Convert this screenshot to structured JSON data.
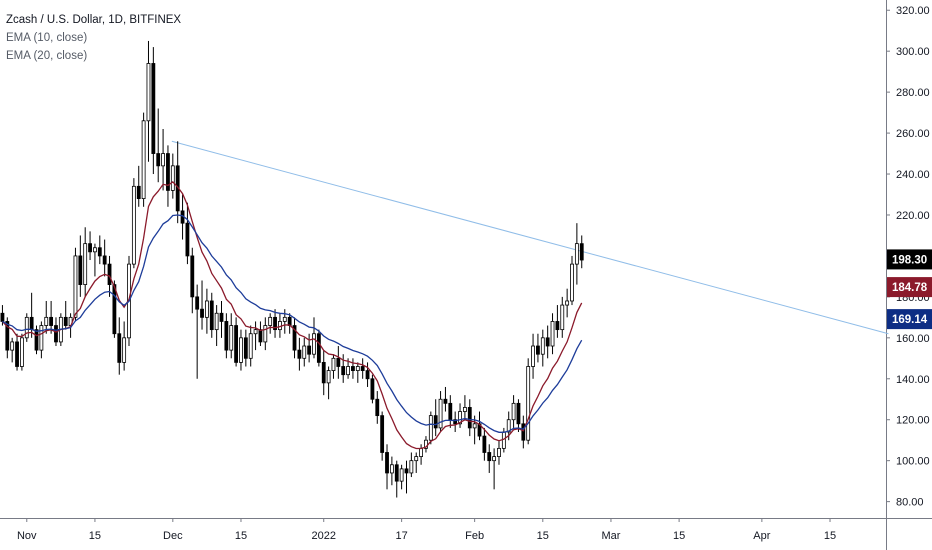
{
  "legend": {
    "title": "Zcash / U.S. Dollar, 1D, BITFINEX",
    "ema10": "EMA (10, close)",
    "ema20": "EMA (20, close)"
  },
  "colors": {
    "up_body": "#ffffff",
    "down_body": "#000000",
    "wick": "#000000",
    "ema10": "#8b1a2b",
    "ema20": "#1e3d9a",
    "trendline": "#90bde8",
    "last_price_bg": "#000000",
    "ema10_badge_bg": "#8b1a2b",
    "ema20_badge_bg": "#0d2d84"
  },
  "chart_data": {
    "type": "candlestick",
    "title": "Zcash / U.S. Dollar, 1D, BITFINEX",
    "ylim": [
      72,
      325
    ],
    "y_ticks": [
      "80.00",
      "100.00",
      "120.00",
      "140.00",
      "160.00",
      "180.00",
      "200.00",
      "220.00",
      "240.00",
      "260.00",
      "280.00",
      "300.00",
      "320.00"
    ],
    "y_tick_values": [
      80,
      100,
      120,
      140,
      160,
      180,
      200,
      220,
      240,
      260,
      280,
      300,
      320
    ],
    "x_ticks": [
      {
        "label": "Nov",
        "index": 5
      },
      {
        "label": "15",
        "index": 19
      },
      {
        "label": "Dec",
        "index": 35
      },
      {
        "label": "15",
        "index": 49
      },
      {
        "label": "2022",
        "index": 66
      },
      {
        "label": "17",
        "index": 82
      },
      {
        "label": "Feb",
        "index": 97
      },
      {
        "label": "15",
        "index": 111
      },
      {
        "label": "Mar",
        "index": 125
      },
      {
        "label": "15",
        "index": 139
      },
      {
        "label": "Apr",
        "index": 156
      },
      {
        "label": "15",
        "index": 170
      }
    ],
    "total_slots": 182,
    "last_price": "198.30",
    "ema10_last": "184.78",
    "ema20_last": "169.14",
    "ema10_last_value": 184.78,
    "ema20_last_value": 169.14,
    "last_price_value": 198.3,
    "trendline": {
      "x1": 34.8,
      "y1": 256,
      "x2": 182,
      "y2": 162
    },
    "ohlc": [
      [
        172,
        176,
        166,
        168
      ],
      [
        168,
        170,
        150,
        154
      ],
      [
        154,
        160,
        148,
        158
      ],
      [
        158,
        162,
        144,
        146
      ],
      [
        146,
        162,
        144,
        160
      ],
      [
        160,
        172,
        158,
        170
      ],
      [
        170,
        182,
        160,
        164
      ],
      [
        164,
        166,
        152,
        154
      ],
      [
        154,
        168,
        150,
        166
      ],
      [
        166,
        178,
        162,
        170
      ],
      [
        170,
        178,
        162,
        166
      ],
      [
        166,
        170,
        156,
        158
      ],
      [
        158,
        172,
        156,
        170
      ],
      [
        170,
        178,
        164,
        166
      ],
      [
        166,
        172,
        160,
        170
      ],
      [
        170,
        204,
        168,
        200
      ],
      [
        200,
        210,
        180,
        186
      ],
      [
        186,
        214,
        180,
        206
      ],
      [
        206,
        212,
        198,
        202
      ],
      [
        202,
        206,
        190,
        204
      ],
      [
        204,
        210,
        196,
        200
      ],
      [
        200,
        208,
        190,
        196
      ],
      [
        196,
        200,
        180,
        186
      ],
      [
        186,
        188,
        160,
        162
      ],
      [
        162,
        170,
        142,
        148
      ],
      [
        148,
        168,
        144,
        160
      ],
      [
        160,
        200,
        156,
        196
      ],
      [
        196,
        238,
        194,
        234
      ],
      [
        234,
        244,
        224,
        228
      ],
      [
        228,
        270,
        224,
        266
      ],
      [
        266,
        305,
        246,
        294
      ],
      [
        294,
        302,
        240,
        250
      ],
      [
        250,
        272,
        236,
        244
      ],
      [
        244,
        262,
        232,
        250
      ],
      [
        250,
        254,
        224,
        232
      ],
      [
        232,
        250,
        228,
        244
      ],
      [
        244,
        256,
        216,
        222
      ],
      [
        222,
        230,
        208,
        216
      ],
      [
        216,
        226,
        196,
        200
      ],
      [
        200,
        204,
        172,
        180
      ],
      [
        180,
        186,
        140,
        174
      ],
      [
        174,
        188,
        164,
        170
      ],
      [
        170,
        184,
        162,
        178
      ],
      [
        178,
        182,
        160,
        164
      ],
      [
        164,
        176,
        156,
        172
      ],
      [
        172,
        178,
        160,
        168
      ],
      [
        168,
        172,
        150,
        154
      ],
      [
        154,
        172,
        150,
        166
      ],
      [
        166,
        170,
        146,
        148
      ],
      [
        148,
        164,
        144,
        160
      ],
      [
        160,
        164,
        146,
        150
      ],
      [
        150,
        166,
        146,
        162
      ],
      [
        162,
        168,
        154,
        164
      ],
      [
        164,
        168,
        156,
        158
      ],
      [
        158,
        170,
        154,
        166
      ],
      [
        166,
        172,
        162,
        170
      ],
      [
        170,
        174,
        160,
        164
      ],
      [
        164,
        172,
        160,
        168
      ],
      [
        168,
        174,
        162,
        170
      ],
      [
        170,
        172,
        162,
        166
      ],
      [
        166,
        170,
        150,
        154
      ],
      [
        154,
        160,
        144,
        150
      ],
      [
        150,
        160,
        146,
        156
      ],
      [
        156,
        162,
        148,
        152
      ],
      [
        152,
        170,
        150,
        162
      ],
      [
        162,
        164,
        146,
        148
      ],
      [
        148,
        154,
        132,
        138
      ],
      [
        138,
        146,
        130,
        144
      ],
      [
        144,
        152,
        140,
        150
      ],
      [
        150,
        156,
        140,
        146
      ],
      [
        146,
        152,
        138,
        142
      ],
      [
        142,
        150,
        140,
        146
      ],
      [
        146,
        150,
        140,
        144
      ],
      [
        144,
        148,
        138,
        146
      ],
      [
        146,
        150,
        140,
        144
      ],
      [
        144,
        148,
        136,
        140
      ],
      [
        140,
        142,
        128,
        130
      ],
      [
        130,
        134,
        118,
        122
      ],
      [
        122,
        124,
        100,
        104
      ],
      [
        104,
        108,
        86,
        94
      ],
      [
        94,
        102,
        88,
        98
      ],
      [
        98,
        100,
        82,
        90
      ],
      [
        90,
        98,
        86,
        96
      ],
      [
        96,
        100,
        84,
        94
      ],
      [
        94,
        104,
        92,
        100
      ],
      [
        100,
        104,
        94,
        102
      ],
      [
        102,
        108,
        98,
        106
      ],
      [
        106,
        112,
        104,
        110
      ],
      [
        110,
        124,
        108,
        122
      ],
      [
        122,
        130,
        112,
        116
      ],
      [
        116,
        134,
        114,
        130
      ],
      [
        130,
        136,
        124,
        128
      ],
      [
        128,
        132,
        116,
        120
      ],
      [
        120,
        124,
        114,
        118
      ],
      [
        118,
        128,
        116,
        124
      ],
      [
        124,
        132,
        120,
        126
      ],
      [
        126,
        130,
        112,
        116
      ],
      [
        116,
        122,
        108,
        118
      ],
      [
        118,
        124,
        110,
        112
      ],
      [
        112,
        116,
        100,
        104
      ],
      [
        104,
        108,
        94,
        100
      ],
      [
        100,
        106,
        86,
        102
      ],
      [
        102,
        110,
        98,
        106
      ],
      [
        106,
        116,
        104,
        114
      ],
      [
        114,
        124,
        110,
        120
      ],
      [
        120,
        132,
        116,
        128
      ],
      [
        128,
        130,
        114,
        118
      ],
      [
        118,
        122,
        106,
        110
      ],
      [
        110,
        150,
        108,
        146
      ],
      [
        146,
        162,
        140,
        156
      ],
      [
        156,
        162,
        148,
        152
      ],
      [
        152,
        164,
        146,
        160
      ],
      [
        160,
        166,
        150,
        156
      ],
      [
        156,
        172,
        152,
        168
      ],
      [
        168,
        176,
        160,
        164
      ],
      [
        164,
        180,
        160,
        176
      ],
      [
        176,
        184,
        170,
        178
      ],
      [
        178,
        200,
        176,
        196
      ],
      [
        196,
        216,
        186,
        206
      ],
      [
        206,
        210,
        194,
        198
      ]
    ]
  }
}
